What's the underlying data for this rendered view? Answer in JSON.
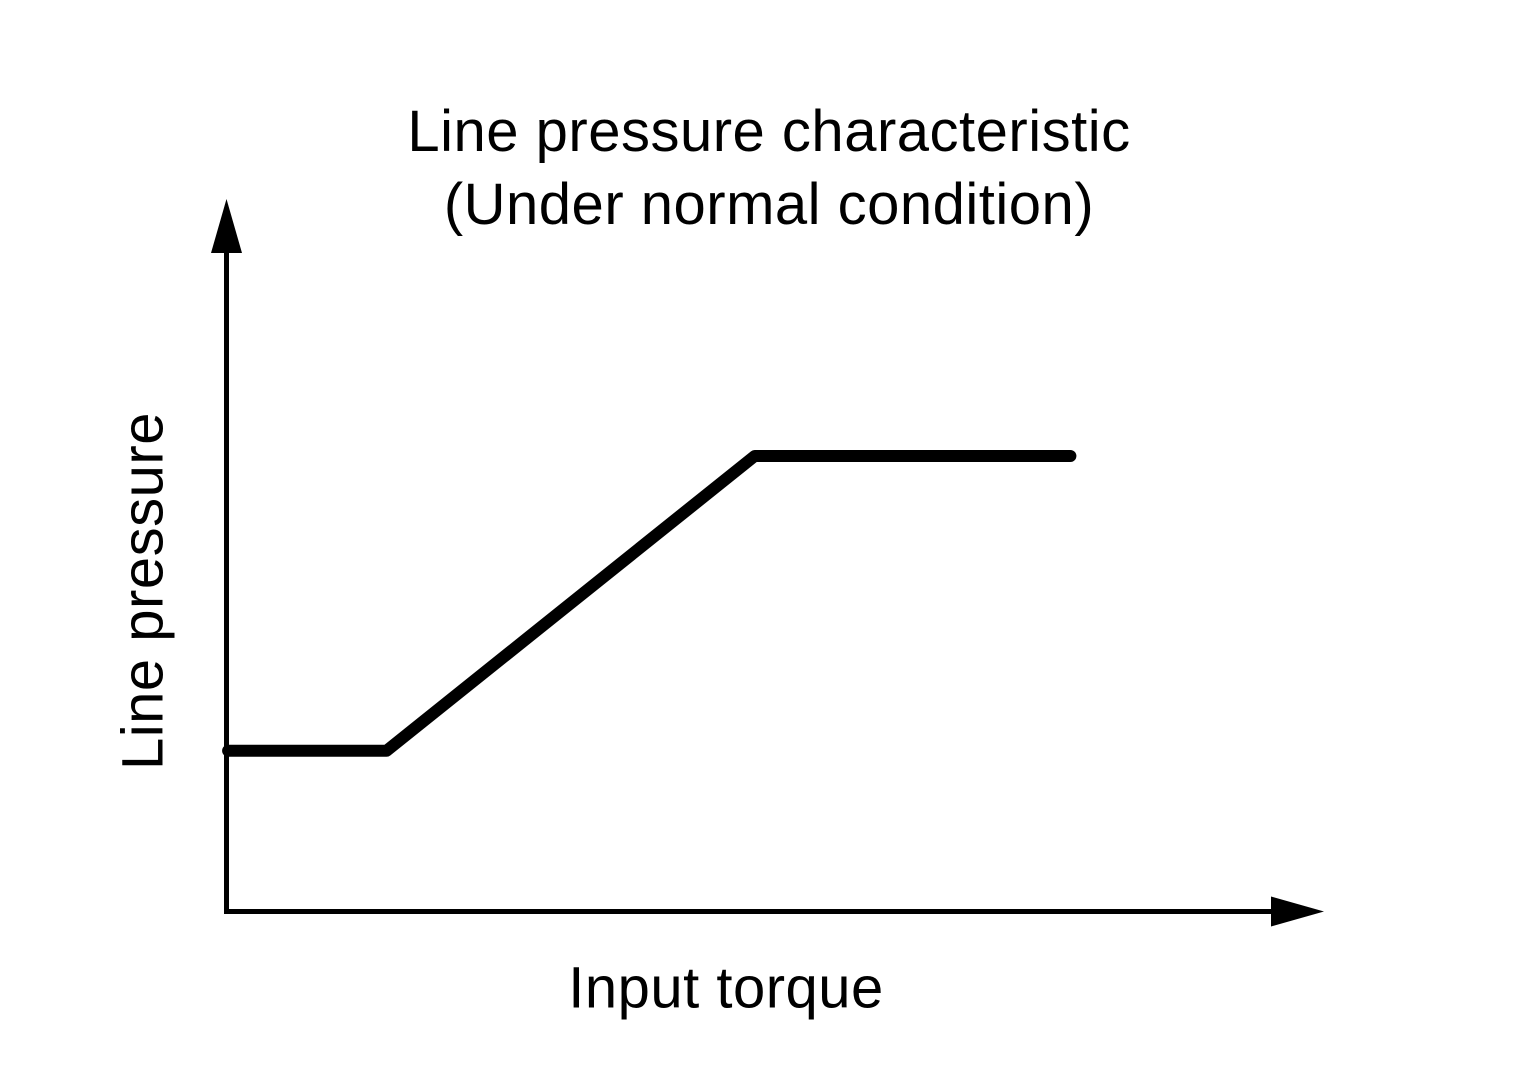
{
  "title": {
    "line1": "Line pressure characteristic",
    "line2": "(Under normal condition)"
  },
  "axes": {
    "x_label": "Input torque",
    "y_label": "Line pressure"
  },
  "colors": {
    "background": "#ffffff",
    "ink": "#000000"
  },
  "chart_data": {
    "type": "line",
    "title": "Line pressure characteristic (Under normal condition)",
    "xlabel": "Input torque",
    "ylabel": "Line pressure",
    "xlim": [
      0,
      100
    ],
    "ylim": [
      0,
      100
    ],
    "x_tick_labels": [],
    "y_tick_labels": [],
    "grid": false,
    "legend": "none",
    "value_scale_note": "axes carry no tick labels; values are percent of axis length estimated from pixels",
    "series": [
      {
        "name": "Line pressure vs. input torque (normal condition)",
        "x": [
          0.2,
          15.3,
          50.4,
          80.5
        ],
        "values": [
          22.8,
          22.8,
          64.5,
          64.5
        ]
      }
    ]
  }
}
